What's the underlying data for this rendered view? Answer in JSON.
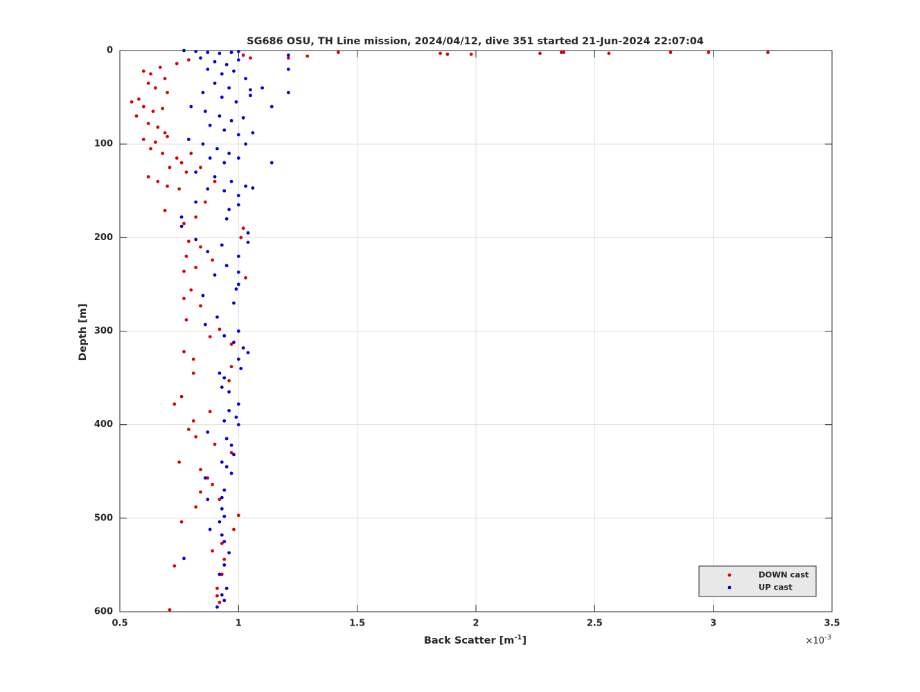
{
  "chart_data": {
    "type": "scatter",
    "title": "SG686 OSU, TH Line mission, 2024/04/12, dive 351 started 21-Jun-2024 22:07:04",
    "xlabel": {
      "text": "Back Scatter [m",
      "sup": "-1",
      "end": "]"
    },
    "ylabel": "Depth [m]",
    "x_multiplier": {
      "text": "×10",
      "sup": "-3"
    },
    "xlim": [
      0.5,
      3.5
    ],
    "xticks": [
      0.5,
      1,
      1.5,
      2,
      2.5,
      3,
      3.5
    ],
    "ylim": [
      0,
      600
    ],
    "yticks": [
      0,
      100,
      200,
      300,
      400,
      500,
      600
    ],
    "y_reversed": true,
    "grid": true,
    "legend": "lower right",
    "series": [
      {
        "name": "DOWN cast",
        "color": "#dd0000",
        "x": [
          1.42,
          1.85,
          1.88,
          1.98,
          2.27,
          2.36,
          2.37,
          2.56,
          2.82,
          2.98,
          3.23,
          1.21,
          1.29,
          1.05,
          1.02,
          0.74,
          0.79,
          0.6,
          0.63,
          0.67,
          0.62,
          0.69,
          0.65,
          0.7,
          0.55,
          0.58,
          0.6,
          0.64,
          0.68,
          0.57,
          0.62,
          0.66,
          0.69,
          0.6,
          0.65,
          0.7,
          0.63,
          0.68,
          0.74,
          0.76,
          0.71,
          0.62,
          0.66,
          0.7,
          0.75,
          0.78,
          0.8,
          0.84,
          0.9,
          0.69,
          0.77,
          0.82,
          0.86,
          1.02,
          1.01,
          0.79,
          0.84,
          0.78,
          0.89,
          0.77,
          0.82,
          1.03,
          0.8,
          0.84,
          0.77,
          0.78,
          0.92,
          0.88,
          0.77,
          0.81,
          0.97,
          0.81,
          0.97,
          0.96,
          0.76,
          0.73,
          0.88,
          0.81,
          0.79,
          0.82,
          0.9,
          0.97,
          0.75,
          0.84,
          0.87,
          0.89,
          0.84,
          0.92,
          0.82,
          1.0,
          0.76,
          0.98,
          0.93,
          0.89,
          0.94,
          0.73,
          0.93,
          0.91,
          0.91,
          0.92,
          0.71
        ],
        "y": [
          2,
          3,
          4,
          4,
          3,
          2,
          2,
          3,
          2,
          2,
          2,
          8,
          6,
          8,
          5,
          14,
          10,
          22,
          25,
          18,
          35,
          30,
          40,
          45,
          55,
          52,
          60,
          65,
          62,
          70,
          78,
          82,
          88,
          95,
          98,
          92,
          105,
          110,
          115,
          120,
          125,
          135,
          140,
          145,
          148,
          130,
          110,
          125,
          140,
          171,
          185,
          178,
          162,
          190,
          200,
          204,
          210,
          220,
          224,
          236,
          232,
          243,
          256,
          273,
          265,
          288,
          298,
          306,
          322,
          330,
          314,
          345,
          338,
          353,
          370,
          378,
          386,
          396,
          405,
          413,
          421,
          430,
          440,
          448,
          457,
          464,
          472,
          480,
          488,
          497,
          504,
          512,
          527,
          535,
          544,
          551,
          560,
          575,
          583,
          590,
          598
        ]
      },
      {
        "name": "UP cast",
        "color": "#0000dd",
        "x": [
          0.77,
          0.82,
          0.87,
          0.92,
          0.97,
          1.0,
          0.84,
          0.9,
          0.95,
          1.0,
          0.87,
          0.93,
          0.98,
          1.03,
          0.9,
          0.96,
          1.05,
          1.1,
          1.21,
          0.85,
          0.93,
          0.99,
          1.05,
          1.14,
          0.8,
          0.86,
          0.92,
          0.97,
          1.02,
          0.88,
          0.94,
          1.0,
          1.06,
          0.79,
          0.85,
          0.91,
          0.96,
          1.0,
          1.03,
          0.88,
          0.94,
          1.14,
          0.82,
          0.9,
          0.97,
          1.03,
          0.87,
          0.94,
          1.0,
          1.06,
          1.21,
          1.21,
          1.0,
          0.82,
          0.96,
          0.95,
          0.76,
          0.76,
          1.04,
          1.04,
          0.82,
          0.93,
          0.87,
          1.0,
          0.95,
          1.0,
          0.9,
          1.0,
          0.99,
          0.85,
          0.98,
          0.86,
          0.91,
          1.0,
          0.94,
          0.98,
          1.02,
          1.04,
          1.0,
          1.01,
          0.92,
          0.94,
          0.93,
          0.96,
          1.0,
          0.96,
          0.99,
          0.94,
          1.0,
          0.87,
          0.95,
          0.97,
          0.98,
          0.93,
          0.95,
          0.97,
          0.86,
          0.94,
          0.93,
          0.87,
          0.93,
          0.94,
          0.92,
          0.88,
          0.93,
          0.94,
          0.96,
          0.77,
          0.94,
          0.92,
          0.95,
          0.93,
          0.94,
          0.91
        ],
        "y": [
          0,
          1,
          2,
          3,
          2,
          1,
          8,
          12,
          15,
          10,
          20,
          25,
          22,
          30,
          35,
          40,
          42,
          40,
          45,
          45,
          50,
          55,
          48,
          60,
          60,
          65,
          70,
          75,
          72,
          80,
          85,
          90,
          88,
          95,
          100,
          105,
          110,
          115,
          100,
          115,
          120,
          120,
          130,
          135,
          140,
          145,
          148,
          150,
          155,
          147,
          20,
          5,
          165,
          162,
          170,
          180,
          178,
          188,
          195,
          205,
          202,
          208,
          215,
          220,
          230,
          237,
          240,
          250,
          255,
          262,
          270,
          293,
          285,
          300,
          305,
          312,
          318,
          323,
          330,
          340,
          345,
          350,
          360,
          365,
          378,
          385,
          392,
          396,
          400,
          408,
          415,
          422,
          432,
          440,
          445,
          452,
          457,
          470,
          478,
          480,
          490,
          498,
          504,
          512,
          518,
          525,
          537,
          543,
          550,
          560,
          575,
          582,
          588,
          595
        ]
      }
    ]
  }
}
